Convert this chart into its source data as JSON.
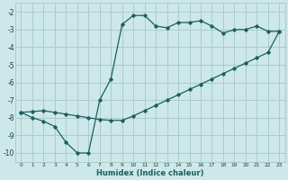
{
  "xlabel": "Humidex (Indice chaleur)",
  "bg_color": "#cce8e8",
  "grid_color": "#aacccc",
  "line_color": "#1a6060",
  "xlim": [
    -0.5,
    23.5
  ],
  "ylim": [
    -10.5,
    -1.5
  ],
  "yticks": [
    -10,
    -9,
    -8,
    -7,
    -6,
    -5,
    -4,
    -3,
    -2
  ],
  "xticks": [
    0,
    1,
    2,
    3,
    4,
    5,
    6,
    7,
    8,
    9,
    10,
    11,
    12,
    13,
    14,
    15,
    16,
    17,
    18,
    19,
    20,
    21,
    22,
    23
  ],
  "line1_x": [
    0,
    1,
    2,
    3,
    4,
    5,
    6,
    7,
    8,
    9,
    10,
    11,
    12,
    13,
    14,
    15,
    16,
    17,
    18,
    19,
    20,
    21,
    22,
    23
  ],
  "line1_y": [
    -7.7,
    -8.0,
    -8.2,
    -8.5,
    -9.4,
    -10.0,
    -10.0,
    -7.0,
    -5.8,
    -2.7,
    -2.2,
    -2.2,
    -2.8,
    -2.9,
    -2.6,
    -2.6,
    -2.5,
    -2.8,
    -3.2,
    -3.0,
    -3.0,
    -2.8,
    -3.1,
    -3.1
  ],
  "line2_x": [
    0,
    1,
    2,
    3,
    4,
    5,
    6,
    7,
    8,
    9,
    10,
    11,
    12,
    13,
    14,
    15,
    16,
    17,
    18,
    19,
    20,
    21,
    22,
    23
  ],
  "line2_y": [
    -7.7,
    -7.65,
    -7.6,
    -7.7,
    -7.8,
    -7.9,
    -8.0,
    -8.1,
    -8.15,
    -8.15,
    -7.9,
    -7.6,
    -7.3,
    -7.0,
    -6.7,
    -6.4,
    -6.1,
    -5.8,
    -5.5,
    -5.2,
    -4.9,
    -4.6,
    -4.3,
    -3.1
  ],
  "ytick_labels": [
    "-10",
    "-9",
    "-8",
    "-7",
    "-6",
    "-5",
    "-4",
    "-3",
    "-2"
  ],
  "xtick_labels": [
    "0",
    "1",
    "2",
    "3",
    "4",
    "5",
    "6",
    "7",
    "8",
    "9",
    "10",
    "11",
    "12",
    "13",
    "14",
    "15",
    "16",
    "17",
    "18",
    "19",
    "20",
    "21",
    "22",
    "23"
  ]
}
